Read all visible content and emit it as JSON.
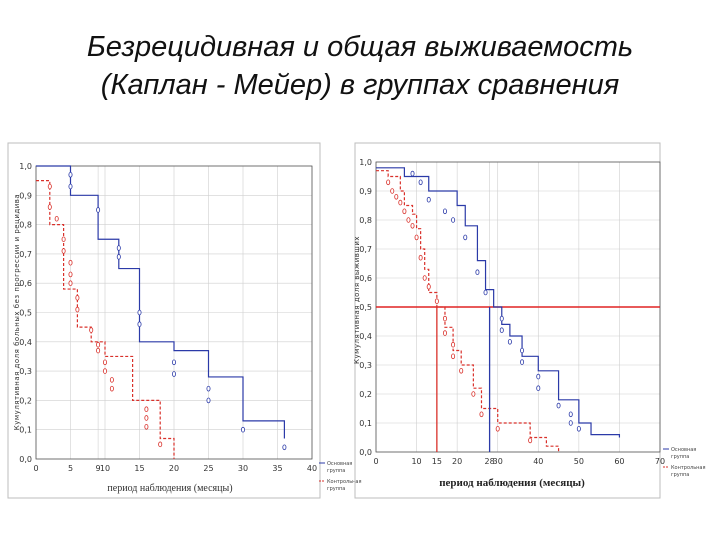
{
  "title": {
    "line1": "Безрецидивная и общая выживаемость",
    "line2": "(Каплан - Мейер) в группах сравнения"
  },
  "colors": {
    "main_group": "#2b3aa8",
    "control_group": "#d9302a",
    "median_line": "#e02424",
    "grid": "#cfcfcf"
  },
  "chart_data": [
    {
      "type": "line",
      "xlabel": "период наблюдения (месяцы)",
      "ylabel": "Кумулятивная доля больных без прогрессии и рецидива",
      "xlim": [
        0,
        40
      ],
      "ylim": [
        0,
        1
      ],
      "xticks": [
        0,
        5,
        9,
        10,
        15,
        20,
        25,
        30,
        35,
        40
      ],
      "yticks": [
        "0,0",
        "0,1",
        "0,2",
        "0,3",
        "0,4",
        "0,5",
        "0,6",
        "0,7",
        "0,8",
        "0,9",
        "1,0"
      ],
      "legend": [
        "Основная группа",
        "Контрольная группа"
      ],
      "legend_position": "bottom-right",
      "grid": true,
      "reference_lines": [
        {
          "x": 9,
          "y": 0
        },
        {
          "x": 15,
          "y": 0
        }
      ],
      "series": [
        {
          "name": "Основная группа",
          "steps": [
            [
              0,
              1.0
            ],
            [
              5,
              0.9
            ],
            [
              9,
              0.75
            ],
            [
              12,
              0.65
            ],
            [
              15,
              0.55
            ],
            [
              15,
              0.4
            ],
            [
              20,
              0.37
            ],
            [
              25,
              0.28
            ],
            [
              30,
              0.13
            ],
            [
              36,
              0.07
            ]
          ],
          "censored": [
            [
              5,
              0.97
            ],
            [
              5,
              0.93
            ],
            [
              9,
              0.85
            ],
            [
              12,
              0.72
            ],
            [
              12,
              0.69
            ],
            [
              15,
              0.5
            ],
            [
              15,
              0.46
            ],
            [
              20,
              0.33
            ],
            [
              20,
              0.29
            ],
            [
              25,
              0.24
            ],
            [
              25,
              0.2
            ],
            [
              30,
              0.1
            ],
            [
              36,
              0.04
            ]
          ]
        },
        {
          "name": "Контрольная группа",
          "steps": [
            [
              0,
              0.95
            ],
            [
              2,
              0.8
            ],
            [
              4,
              0.58
            ],
            [
              6,
              0.45
            ],
            [
              8,
              0.4
            ],
            [
              10,
              0.35
            ],
            [
              14,
              0.2
            ],
            [
              18,
              0.07
            ],
            [
              20,
              0.0
            ]
          ],
          "censored": [
            [
              2,
              0.93
            ],
            [
              2,
              0.86
            ],
            [
              3,
              0.82
            ],
            [
              4,
              0.75
            ],
            [
              4,
              0.71
            ],
            [
              5,
              0.67
            ],
            [
              5,
              0.63
            ],
            [
              5,
              0.6
            ],
            [
              6,
              0.55
            ],
            [
              6,
              0.51
            ],
            [
              8,
              0.44
            ],
            [
              9,
              0.39
            ],
            [
              9,
              0.37
            ],
            [
              10,
              0.33
            ],
            [
              10,
              0.3
            ],
            [
              11,
              0.27
            ],
            [
              11,
              0.24
            ],
            [
              16,
              0.17
            ],
            [
              16,
              0.14
            ],
            [
              16,
              0.11
            ],
            [
              18,
              0.05
            ]
          ]
        }
      ]
    },
    {
      "type": "line",
      "xlabel": "период наблюдения (месяцы)",
      "ylabel": "Кумулятивная доля выживших",
      "xlim": [
        0,
        70
      ],
      "ylim": [
        0,
        1
      ],
      "xticks": [
        0,
        10,
        15,
        20,
        28,
        30,
        40,
        50,
        60,
        70
      ],
      "yticks": [
        "0,0",
        "0,1",
        "0,2",
        "0,3",
        "0,4",
        "0,5",
        "0,6",
        "0,7",
        "0,8",
        "0,9",
        "1,0"
      ],
      "legend": [
        "Основная группа",
        "Контрольная группа"
      ],
      "legend_position": "bottom-right",
      "grid": true,
      "median_y": 0.5,
      "reference_lines": [
        {
          "x": 15,
          "y": 0.5
        },
        {
          "x": 28,
          "y": 0.5
        }
      ],
      "series": [
        {
          "name": "Основная группа",
          "steps": [
            [
              0,
              0.98
            ],
            [
              7,
              0.95
            ],
            [
              13,
              0.9
            ],
            [
              20,
              0.85
            ],
            [
              22,
              0.78
            ],
            [
              25,
              0.66
            ],
            [
              27,
              0.56
            ],
            [
              29,
              0.5
            ],
            [
              31,
              0.44
            ],
            [
              33,
              0.4
            ],
            [
              36,
              0.33
            ],
            [
              40,
              0.28
            ],
            [
              45,
              0.18
            ],
            [
              50,
              0.1
            ],
            [
              53,
              0.06
            ],
            [
              60,
              0.05
            ]
          ],
          "censored": [
            [
              9,
              0.96
            ],
            [
              11,
              0.93
            ],
            [
              13,
              0.87
            ],
            [
              17,
              0.83
            ],
            [
              19,
              0.8
            ],
            [
              22,
              0.74
            ],
            [
              25,
              0.62
            ],
            [
              27,
              0.55
            ],
            [
              31,
              0.46
            ],
            [
              31,
              0.42
            ],
            [
              33,
              0.38
            ],
            [
              36,
              0.35
            ],
            [
              36,
              0.31
            ],
            [
              40,
              0.26
            ],
            [
              40,
              0.22
            ],
            [
              45,
              0.16
            ],
            [
              48,
              0.13
            ],
            [
              48,
              0.1
            ],
            [
              50,
              0.08
            ]
          ]
        },
        {
          "name": "Контрольная группа",
          "steps": [
            [
              0,
              0.97
            ],
            [
              3,
              0.95
            ],
            [
              6,
              0.9
            ],
            [
              7,
              0.85
            ],
            [
              9,
              0.82
            ],
            [
              10,
              0.77
            ],
            [
              11,
              0.7
            ],
            [
              12,
              0.63
            ],
            [
              13,
              0.55
            ],
            [
              15,
              0.5
            ],
            [
              17,
              0.43
            ],
            [
              19,
              0.35
            ],
            [
              21,
              0.3
            ],
            [
              24,
              0.22
            ],
            [
              26,
              0.15
            ],
            [
              30,
              0.1
            ],
            [
              38,
              0.05
            ],
            [
              42,
              0.02
            ],
            [
              45,
              0.0
            ]
          ],
          "censored": [
            [
              3,
              0.93
            ],
            [
              4,
              0.9
            ],
            [
              5,
              0.88
            ],
            [
              6,
              0.86
            ],
            [
              7,
              0.83
            ],
            [
              8,
              0.8
            ],
            [
              9,
              0.78
            ],
            [
              10,
              0.74
            ],
            [
              11,
              0.67
            ],
            [
              12,
              0.6
            ],
            [
              13,
              0.57
            ],
            [
              15,
              0.52
            ],
            [
              17,
              0.46
            ],
            [
              17,
              0.41
            ],
            [
              19,
              0.37
            ],
            [
              19,
              0.33
            ],
            [
              21,
              0.28
            ],
            [
              24,
              0.2
            ],
            [
              26,
              0.13
            ],
            [
              30,
              0.08
            ],
            [
              38,
              0.04
            ]
          ]
        }
      ]
    }
  ]
}
